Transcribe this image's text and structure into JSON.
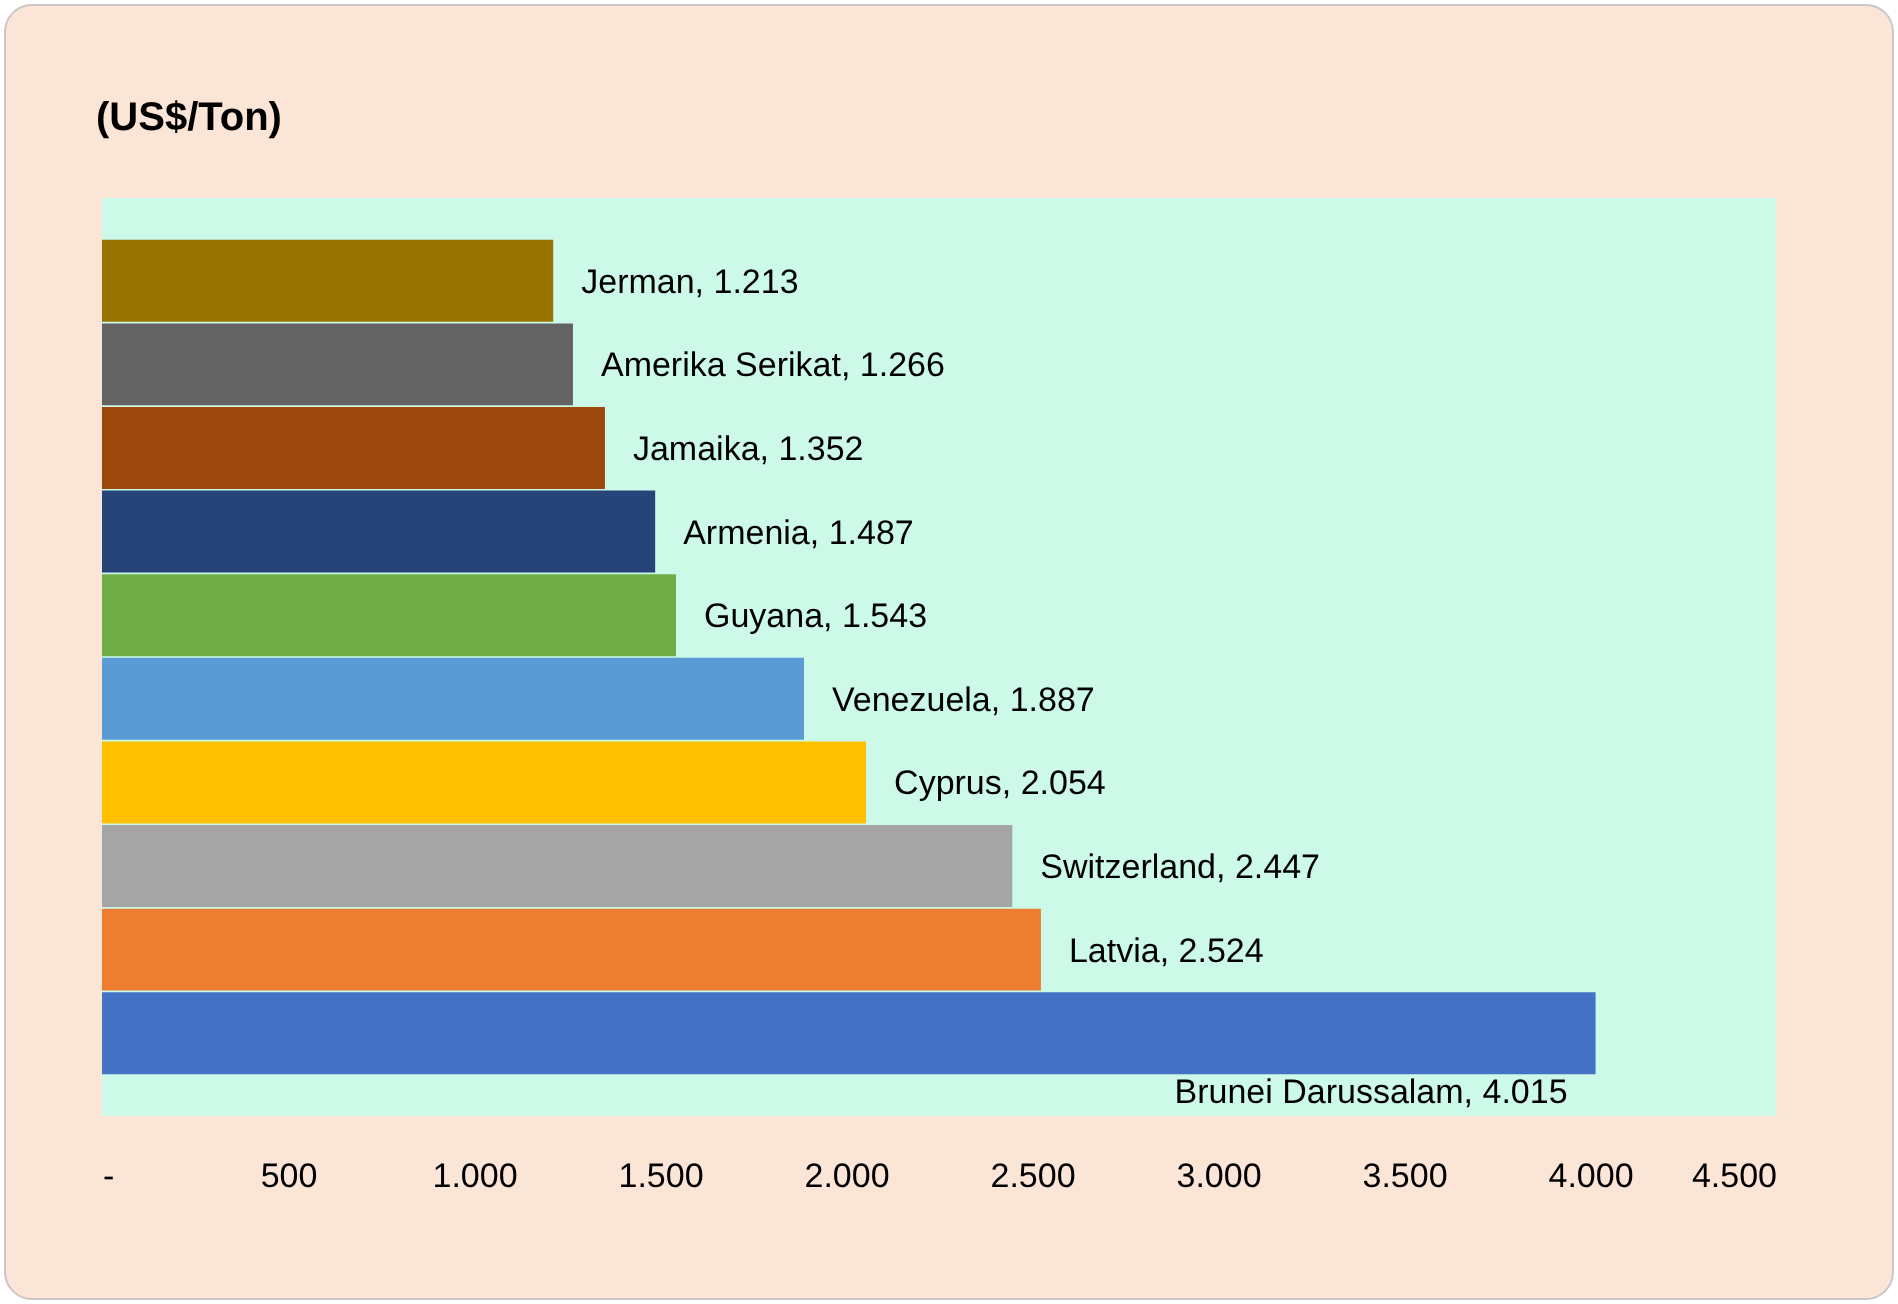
{
  "chart_data": {
    "type": "bar",
    "orientation": "horizontal",
    "title": "(US$/Ton)",
    "categories": [
      null,
      null,
      null,
      null,
      null,
      null,
      null,
      null,
      null,
      null
    ],
    "values": [
      1213,
      1266,
      1352,
      1487,
      1543,
      1887,
      2054,
      2447,
      2524,
      4015
    ],
    "colors": [
      "#997300",
      "#636363",
      "#9e480e",
      "#264478",
      "#70ad47",
      "#5b9bd5",
      "#ffc000",
      "#a5a5a5",
      "#ed7d31",
      "#4472c4"
    ],
    "value_labels": [
      "Jerman, 1.213",
      "Amerika Serikat, 1.266",
      "Jamaika, 1.352",
      "Armenia, 1.487",
      "Guyana, 1.543",
      "Venezuela, 1.887",
      "Cyprus, 2.054",
      "Switzerland, 2.447",
      "Latvia, 2.524",
      "Brunei Darussalam, 4.015"
    ],
    "xlim": [
      0,
      4500
    ],
    "xticks": [
      {
        "value": 0,
        "label": "-"
      },
      500,
      {
        "value": 1000,
        "label": "1.000"
      },
      {
        "value": 1500,
        "label": "1.500"
      },
      {
        "value": 2000,
        "label": "2.000"
      },
      {
        "value": 2500,
        "label": "2.500"
      },
      {
        "value": 3000,
        "label": "3.000"
      },
      {
        "value": 3500,
        "label": "3.500"
      },
      {
        "value": 4000,
        "label": "4.000"
      },
      {
        "value": 4500,
        "label": "4.500"
      }
    ],
    "tick_labels": "x"
  }
}
